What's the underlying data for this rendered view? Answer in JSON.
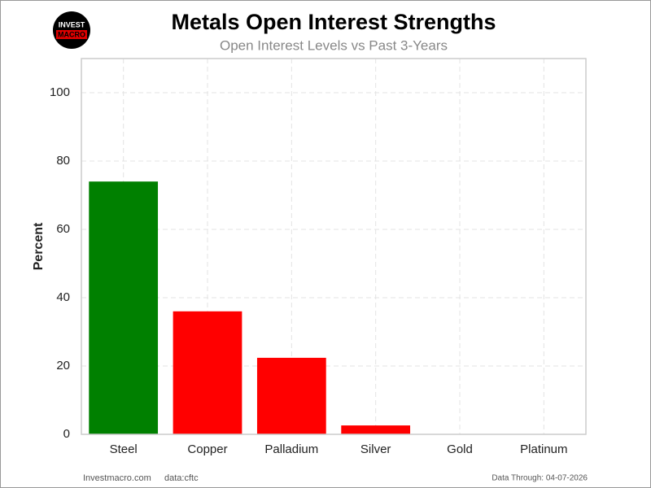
{
  "logo": {
    "line1": "INVEST",
    "line2": "MACRO"
  },
  "chart_data": {
    "type": "bar",
    "title": "Metals Open Interest Strengths",
    "subtitle": "Open Interest Levels vs Past 3-Years",
    "y_label": "Percent",
    "categories": [
      "Steel",
      "Copper",
      "Palladium",
      "Silver",
      "Gold",
      "Platinum"
    ],
    "values": [
      74,
      36,
      22.4,
      2.6,
      0,
      0
    ],
    "colors": [
      "#008000",
      "#ff0000",
      "#ff0000",
      "#ff0000",
      "#ff0000",
      "#ff0000"
    ],
    "ylim": [
      0,
      110
    ],
    "yticks": [
      0,
      20,
      40,
      60,
      80,
      100
    ],
    "grid": true
  },
  "footer": {
    "site": "Investmacro.com",
    "source": "data:cftc",
    "date": "Data Through: 04-07-2026"
  }
}
